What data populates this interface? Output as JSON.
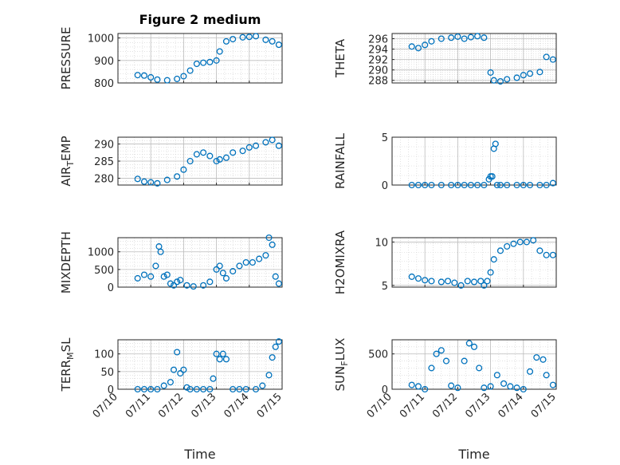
{
  "figure_title": "Figure 2 medium",
  "marker_color": "#0072BD",
  "x_tick_labels": [
    "07/10",
    "07/11",
    "07/12",
    "07/13",
    "07/14",
    "07/15"
  ],
  "x_label": "Time",
  "chart_data": [
    {
      "type": "scatter",
      "title": "Figure 2 medium",
      "ylabel": "PRESSURE",
      "xlim": [
        0,
        5
      ],
      "ylim": [
        800,
        1020
      ],
      "yticks": [
        800,
        900,
        1000
      ],
      "grid": true,
      "x": [
        0.6,
        0.8,
        1.0,
        1.2,
        1.5,
        1.8,
        2.0,
        2.2,
        2.4,
        2.6,
        2.8,
        3.0,
        3.1,
        3.3,
        3.5,
        3.8,
        4.0,
        4.2,
        4.5,
        4.7,
        4.9
      ],
      "y": [
        835,
        833,
        825,
        815,
        812,
        818,
        830,
        855,
        885,
        890,
        893,
        900,
        940,
        985,
        995,
        1003,
        1005,
        1008,
        992,
        985,
        970
      ]
    },
    {
      "type": "scatter",
      "ylabel": "THETA",
      "xlim": [
        0,
        5
      ],
      "ylim": [
        287.5,
        297
      ],
      "yticks": [
        288,
        290,
        292,
        294,
        296
      ],
      "grid": true,
      "x": [
        0.6,
        0.8,
        1.0,
        1.2,
        1.5,
        1.8,
        2.0,
        2.2,
        2.4,
        2.6,
        2.8,
        3.0,
        3.1,
        3.3,
        3.5,
        3.8,
        4.0,
        4.2,
        4.5,
        4.7,
        4.9
      ],
      "y": [
        294.5,
        294.2,
        294.8,
        295.5,
        296.0,
        296.2,
        296.4,
        296.0,
        296.3,
        296.5,
        296.2,
        289.5,
        288.0,
        287.8,
        288.2,
        288.5,
        289.0,
        289.3,
        289.6,
        292.5,
        292.0
      ]
    },
    {
      "type": "scatter",
      "ylabel": "AIR_TEMP",
      "xlim": [
        0,
        5
      ],
      "ylim": [
        278,
        292
      ],
      "yticks": [
        280,
        285,
        290
      ],
      "grid": true,
      "x": [
        0.6,
        0.8,
        1.0,
        1.2,
        1.5,
        1.8,
        2.0,
        2.2,
        2.4,
        2.6,
        2.8,
        3.0,
        3.1,
        3.3,
        3.5,
        3.8,
        4.0,
        4.2,
        4.5,
        4.7,
        4.9
      ],
      "y": [
        279.8,
        279.0,
        278.8,
        278.5,
        279.5,
        280.5,
        282.5,
        285.0,
        287.0,
        287.5,
        286.5,
        285.0,
        285.5,
        286.0,
        287.5,
        288.0,
        289.0,
        289.5,
        290.5,
        291.2,
        289.5
      ]
    },
    {
      "type": "scatter",
      "ylabel": "RAINFALL",
      "xlim": [
        0,
        5
      ],
      "ylim": [
        0,
        5
      ],
      "yticks": [
        0,
        5
      ],
      "grid": true,
      "x": [
        0.6,
        0.8,
        1.0,
        1.2,
        1.5,
        1.8,
        2.0,
        2.2,
        2.4,
        2.6,
        2.8,
        2.95,
        3.0,
        3.05,
        3.1,
        3.15,
        3.2,
        3.3,
        3.5,
        3.8,
        4.0,
        4.2,
        4.5,
        4.7,
        4.9
      ],
      "y": [
        0,
        0,
        0,
        0,
        0,
        0,
        0,
        0,
        0,
        0,
        0,
        0.6,
        0.9,
        0.9,
        3.8,
        4.3,
        0,
        0,
        0,
        0,
        0,
        0,
        0,
        0,
        0.2
      ]
    },
    {
      "type": "scatter",
      "ylabel": "MIXDEPTH",
      "xlim": [
        0,
        5
      ],
      "ylim": [
        0,
        1400
      ],
      "yticks": [
        0,
        500,
        1000
      ],
      "grid": true,
      "x": [
        0.6,
        0.8,
        1.0,
        1.15,
        1.25,
        1.3,
        1.4,
        1.5,
        1.6,
        1.7,
        1.8,
        1.9,
        2.1,
        2.3,
        2.6,
        2.8,
        3.0,
        3.1,
        3.2,
        3.3,
        3.5,
        3.7,
        3.9,
        4.1,
        4.3,
        4.5,
        4.6,
        4.7,
        4.8,
        4.9
      ],
      "y": [
        250,
        350,
        300,
        600,
        1150,
        1000,
        300,
        350,
        100,
        50,
        150,
        200,
        50,
        20,
        50,
        150,
        500,
        600,
        400,
        250,
        450,
        600,
        700,
        700,
        800,
        900,
        1400,
        1200,
        300,
        100
      ]
    },
    {
      "type": "scatter",
      "ylabel": "H2OMIXRA",
      "xlim": [
        0,
        5
      ],
      "ylim": [
        4.8,
        10.5
      ],
      "yticks": [
        5,
        10
      ],
      "grid": true,
      "x": [
        0.6,
        0.8,
        1.0,
        1.2,
        1.5,
        1.7,
        1.9,
        2.1,
        2.3,
        2.5,
        2.7,
        2.8,
        2.9,
        3.0,
        3.1,
        3.3,
        3.5,
        3.7,
        3.9,
        4.1,
        4.3,
        4.5,
        4.7,
        4.9
      ],
      "y": [
        6.0,
        5.8,
        5.6,
        5.5,
        5.4,
        5.5,
        5.3,
        5.0,
        5.5,
        5.4,
        5.5,
        5.0,
        5.5,
        6.5,
        8.0,
        9.0,
        9.5,
        9.8,
        10.0,
        10.0,
        10.2,
        9.0,
        8.5,
        8.5
      ]
    },
    {
      "type": "scatter",
      "ylabel": "TERR_MSL",
      "xlim": [
        0,
        5
      ],
      "ylim": [
        0,
        140
      ],
      "yticks": [
        0,
        50,
        100
      ],
      "grid": true,
      "x": [
        0.6,
        0.8,
        1.0,
        1.2,
        1.4,
        1.6,
        1.7,
        1.8,
        1.9,
        2.0,
        2.1,
        2.2,
        2.4,
        2.6,
        2.8,
        2.9,
        3.0,
        3.1,
        3.2,
        3.3,
        3.5,
        3.7,
        3.9,
        4.2,
        4.4,
        4.6,
        4.7,
        4.8,
        4.9
      ],
      "y": [
        0,
        0,
        0,
        0,
        10,
        20,
        55,
        105,
        45,
        55,
        5,
        0,
        0,
        0,
        0,
        30,
        100,
        85,
        100,
        85,
        0,
        0,
        0,
        0,
        10,
        40,
        90,
        120,
        135
      ]
    },
    {
      "type": "scatter",
      "ylabel": "SUN_FLUX",
      "xlim": [
        0,
        5
      ],
      "ylim": [
        0,
        700
      ],
      "yticks": [
        0,
        500
      ],
      "grid": true,
      "x": [
        0.6,
        0.8,
        1.0,
        1.2,
        1.35,
        1.5,
        1.65,
        1.8,
        2.0,
        2.2,
        2.35,
        2.5,
        2.65,
        2.8,
        3.0,
        3.2,
        3.4,
        3.6,
        3.8,
        4.0,
        4.2,
        4.4,
        4.6,
        4.7,
        4.9
      ],
      "y": [
        60,
        40,
        0,
        300,
        500,
        550,
        400,
        50,
        20,
        400,
        650,
        600,
        300,
        20,
        40,
        200,
        80,
        40,
        20,
        0,
        250,
        450,
        420,
        200,
        60
      ]
    }
  ]
}
